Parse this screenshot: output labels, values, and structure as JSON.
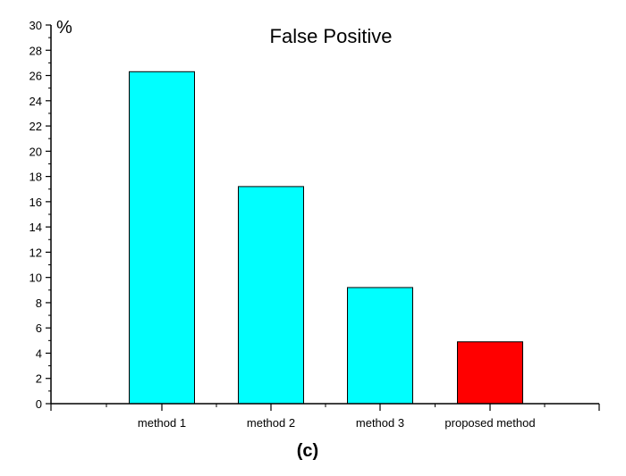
{
  "chart_data": {
    "type": "bar",
    "title": "False Positive",
    "ylabel": "%",
    "xlabel": "",
    "caption": "(c)",
    "categories": [
      "method 1",
      "method 2",
      "method 3",
      "proposed method"
    ],
    "values": [
      26.3,
      17.2,
      9.2,
      4.9
    ],
    "bar_colors": [
      "#00FFFF",
      "#00FFFF",
      "#00FFFF",
      "#FF0000"
    ],
    "ylim": [
      0,
      30
    ],
    "yticks": [
      0,
      2,
      4,
      6,
      8,
      10,
      12,
      14,
      16,
      18,
      20,
      22,
      24,
      26,
      28,
      30
    ],
    "grid": false
  }
}
